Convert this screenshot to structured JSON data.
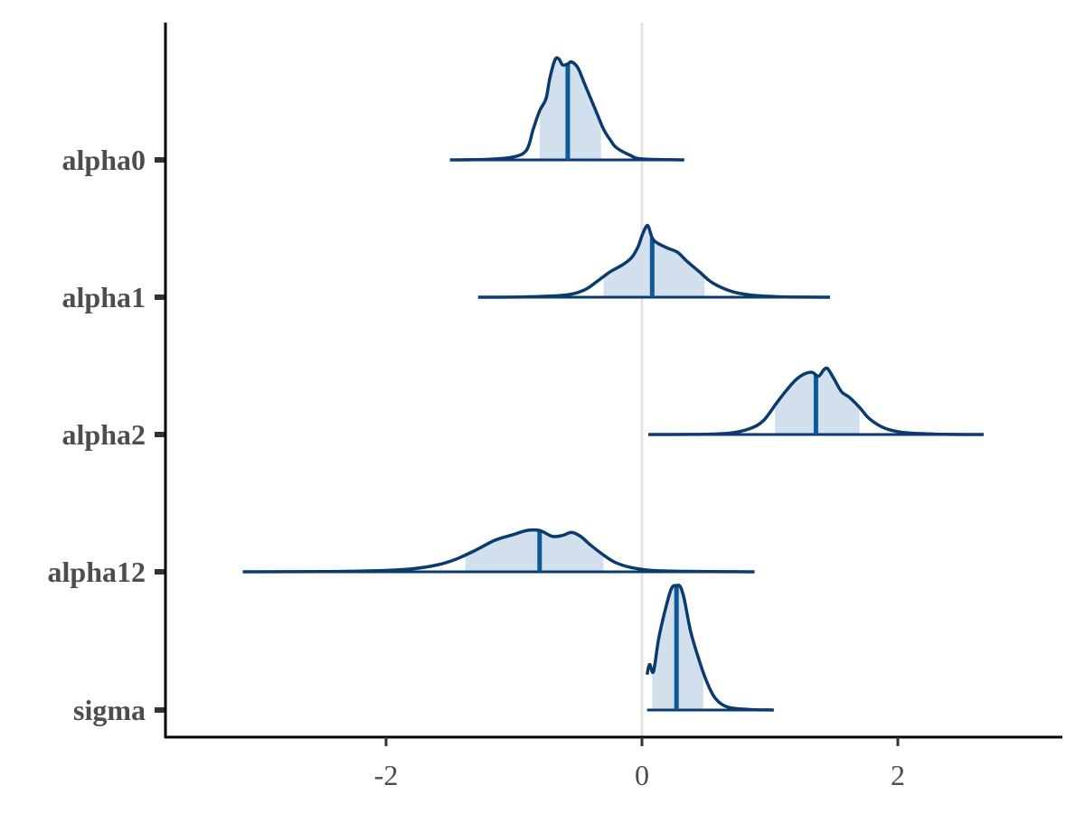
{
  "chart_data": {
    "type": "area",
    "description": "",
    "xlim": [
      -3.5,
      3.3
    ],
    "xticks": [
      -2,
      0,
      2
    ],
    "xtick_labels": [
      "-2",
      "0",
      "2"
    ],
    "reference_line_x": 0,
    "grid": false,
    "colors": {
      "outline": "#0b3a6e",
      "median": "#0f5a96",
      "fill": "#d1e0ec",
      "refline": "#e5e5e5",
      "axis": "#000000"
    },
    "series": [
      {
        "name": "alpha0",
        "median": -0.58,
        "inner_interval": [
          -0.8,
          -0.32
        ],
        "density": [
          [
            -1.5,
            0
          ],
          [
            -1.2,
            0.005
          ],
          [
            -1.0,
            0.03
          ],
          [
            -0.9,
            0.1
          ],
          [
            -0.85,
            0.3
          ],
          [
            -0.8,
            0.48
          ],
          [
            -0.75,
            0.6
          ],
          [
            -0.72,
            0.8
          ],
          [
            -0.68,
            0.98
          ],
          [
            -0.65,
            0.99
          ],
          [
            -0.62,
            0.93
          ],
          [
            -0.58,
            0.94
          ],
          [
            -0.55,
            0.96
          ],
          [
            -0.5,
            0.9
          ],
          [
            -0.45,
            0.75
          ],
          [
            -0.4,
            0.6
          ],
          [
            -0.35,
            0.45
          ],
          [
            -0.3,
            0.3
          ],
          [
            -0.25,
            0.2
          ],
          [
            -0.2,
            0.12
          ],
          [
            -0.1,
            0.05
          ],
          [
            0.0,
            0.01
          ],
          [
            0.33,
            0
          ]
        ]
      },
      {
        "name": "alpha1",
        "median": 0.08,
        "inner_interval": [
          -0.3,
          0.49
        ],
        "density": [
          [
            -1.28,
            0
          ],
          [
            -0.9,
            0.005
          ],
          [
            -0.6,
            0.03
          ],
          [
            -0.45,
            0.1
          ],
          [
            -0.35,
            0.22
          ],
          [
            -0.25,
            0.35
          ],
          [
            -0.15,
            0.45
          ],
          [
            -0.08,
            0.55
          ],
          [
            -0.03,
            0.7
          ],
          [
            0.0,
            0.85
          ],
          [
            0.03,
            0.97
          ],
          [
            0.05,
            0.98
          ],
          [
            0.08,
            0.82
          ],
          [
            0.12,
            0.75
          ],
          [
            0.2,
            0.68
          ],
          [
            0.28,
            0.62
          ],
          [
            0.35,
            0.5
          ],
          [
            0.45,
            0.35
          ],
          [
            0.55,
            0.2
          ],
          [
            0.7,
            0.08
          ],
          [
            0.85,
            0.03
          ],
          [
            1.1,
            0.005
          ],
          [
            1.47,
            0
          ]
        ]
      },
      {
        "name": "alpha2",
        "median": 1.36,
        "inner_interval": [
          1.04,
          1.7
        ],
        "density": [
          [
            0.05,
            0
          ],
          [
            0.5,
            0.003
          ],
          [
            0.7,
            0.02
          ],
          [
            0.85,
            0.08
          ],
          [
            0.95,
            0.18
          ],
          [
            1.05,
            0.4
          ],
          [
            1.12,
            0.55
          ],
          [
            1.2,
            0.7
          ],
          [
            1.27,
            0.78
          ],
          [
            1.33,
            0.8
          ],
          [
            1.38,
            0.75
          ],
          [
            1.42,
            0.83
          ],
          [
            1.45,
            0.85
          ],
          [
            1.5,
            0.72
          ],
          [
            1.56,
            0.55
          ],
          [
            1.62,
            0.48
          ],
          [
            1.7,
            0.35
          ],
          [
            1.78,
            0.2
          ],
          [
            1.9,
            0.08
          ],
          [
            2.05,
            0.025
          ],
          [
            2.3,
            0.005
          ],
          [
            2.67,
            0
          ]
        ]
      },
      {
        "name": "alpha12",
        "median": -0.8,
        "inner_interval": [
          -1.38,
          -0.3
        ],
        "density": [
          [
            -3.12,
            0
          ],
          [
            -2.5,
            0.002
          ],
          [
            -2.1,
            0.01
          ],
          [
            -1.8,
            0.03
          ],
          [
            -1.6,
            0.07
          ],
          [
            -1.45,
            0.13
          ],
          [
            -1.3,
            0.22
          ],
          [
            -1.15,
            0.32
          ],
          [
            -1.0,
            0.38
          ],
          [
            -0.9,
            0.42
          ],
          [
            -0.8,
            0.42
          ],
          [
            -0.7,
            0.36
          ],
          [
            -0.62,
            0.37
          ],
          [
            -0.55,
            0.4
          ],
          [
            -0.48,
            0.36
          ],
          [
            -0.4,
            0.27
          ],
          [
            -0.3,
            0.17
          ],
          [
            -0.2,
            0.09
          ],
          [
            -0.05,
            0.035
          ],
          [
            0.2,
            0.008
          ],
          [
            0.88,
            0
          ]
        ]
      },
      {
        "name": "sigma",
        "median": 0.27,
        "inner_interval": [
          0.08,
          0.48
        ],
        "density": [
          [
            0.04,
            0.35
          ],
          [
            0.06,
            0.45
          ],
          [
            0.09,
            0.38
          ],
          [
            0.13,
            0.7
          ],
          [
            0.18,
            0.98
          ],
          [
            0.23,
            1.2
          ],
          [
            0.27,
            1.23
          ],
          [
            0.3,
            1.22
          ],
          [
            0.33,
            1.1
          ],
          [
            0.38,
            0.78
          ],
          [
            0.44,
            0.52
          ],
          [
            0.5,
            0.3
          ],
          [
            0.56,
            0.14
          ],
          [
            0.62,
            0.06
          ],
          [
            0.7,
            0.02
          ],
          [
            0.85,
            0.005
          ],
          [
            1.03,
            0
          ]
        ]
      }
    ]
  }
}
